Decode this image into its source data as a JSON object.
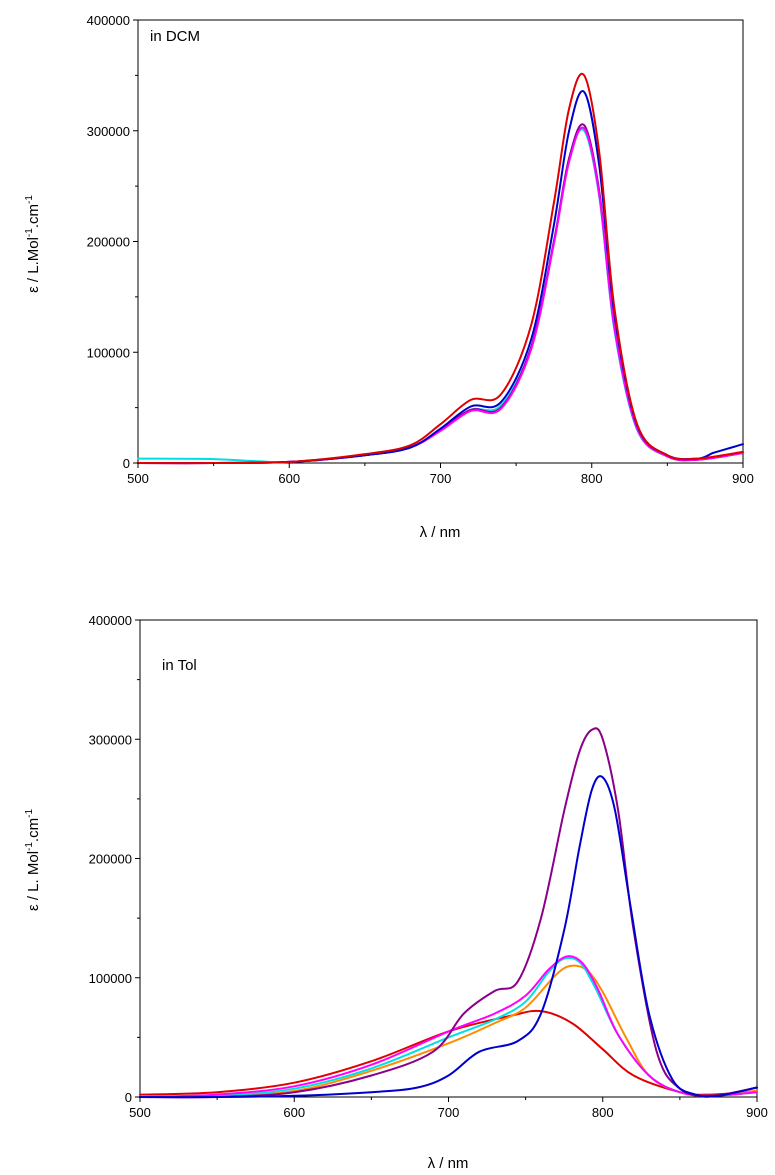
{
  "chart_data": [
    {
      "type": "line",
      "annotation": "in DCM",
      "xlabel": "λ / nm",
      "ylabel": "ε / L.Mol-1.cm-1",
      "ylabel_parts": [
        "ε / L.Mol",
        "-1",
        ".cm",
        "-1"
      ],
      "xlim": [
        500,
        900
      ],
      "ylim": [
        0,
        400000
      ],
      "xticks": [
        500,
        600,
        700,
        800,
        900
      ],
      "yticks": [
        0,
        100000,
        200000,
        300000,
        400000
      ],
      "grid": false,
      "series": [
        {
          "color": "#00e0e0",
          "x": [
            500,
            550,
            580,
            600,
            650,
            680,
            700,
            720,
            740,
            760,
            775,
            785,
            795,
            805,
            815,
            830,
            850,
            870,
            900
          ],
          "y": [
            4000,
            3500,
            1500,
            1000,
            7000,
            14000,
            30000,
            48000,
            52000,
            105000,
            200000,
            275000,
            300000,
            240000,
            120000,
            30000,
            6000,
            3000,
            9000
          ]
        },
        {
          "color": "#8b008b",
          "x": [
            500,
            550,
            600,
            650,
            680,
            700,
            720,
            740,
            760,
            775,
            785,
            795,
            805,
            815,
            830,
            850,
            870,
            900
          ],
          "y": [
            0,
            0,
            1000,
            7000,
            14000,
            30000,
            48000,
            50000,
            105000,
            200000,
            275000,
            305000,
            245000,
            125000,
            32000,
            6000,
            3000,
            9000
          ]
        },
        {
          "color": "#ff00ff",
          "x": [
            500,
            550,
            600,
            650,
            680,
            700,
            720,
            740,
            760,
            775,
            785,
            795,
            805,
            815,
            830,
            850,
            870,
            900
          ],
          "y": [
            0,
            0,
            1000,
            7000,
            14000,
            29000,
            47000,
            49000,
            103000,
            198000,
            272000,
            302000,
            242000,
            122000,
            31000,
            6000,
            3000,
            9000
          ]
        },
        {
          "color": "#0000cc",
          "x": [
            500,
            550,
            600,
            650,
            680,
            700,
            720,
            740,
            760,
            775,
            785,
            795,
            805,
            815,
            830,
            850,
            870,
            880,
            885,
            890,
            895,
            900
          ],
          "y": [
            0,
            0,
            1000,
            7000,
            14000,
            31000,
            51000,
            55000,
            112000,
            215000,
            300000,
            335000,
            268000,
            135000,
            34000,
            7000,
            4000,
            9000,
            11000,
            13000,
            15000,
            17000
          ]
        },
        {
          "color": "#e00000",
          "x": [
            500,
            550,
            600,
            650,
            680,
            700,
            720,
            740,
            760,
            775,
            785,
            795,
            805,
            815,
            830,
            850,
            870,
            900
          ],
          "y": [
            0,
            0,
            1000,
            8000,
            16000,
            35000,
            57000,
            62000,
            125000,
            235000,
            320000,
            350000,
            280000,
            140000,
            35000,
            7000,
            4000,
            10000
          ]
        }
      ]
    },
    {
      "type": "line",
      "annotation": "in Tol",
      "xlabel": "λ / nm",
      "ylabel": "ε / L. Mol-1.cm-1",
      "ylabel_parts": [
        "ε / L. Mol",
        "-1",
        ".cm",
        "-1"
      ],
      "xlim": [
        500,
        900
      ],
      "ylim": [
        0,
        400000
      ],
      "xticks": [
        500,
        600,
        700,
        800,
        900
      ],
      "yticks": [
        0,
        100000,
        200000,
        300000,
        400000
      ],
      "grid": false,
      "series": [
        {
          "color": "#e00000",
          "x": [
            500,
            550,
            600,
            650,
            700,
            740,
            760,
            780,
            800,
            820,
            850,
            870,
            900
          ],
          "y": [
            2000,
            4000,
            12000,
            30000,
            55000,
            68000,
            72000,
            62000,
            40000,
            18000,
            4000,
            2000,
            5000
          ]
        },
        {
          "color": "#ff8c00",
          "x": [
            500,
            550,
            600,
            650,
            700,
            730,
            750,
            770,
            780,
            790,
            800,
            815,
            830,
            850,
            870,
            900
          ],
          "y": [
            0,
            1000,
            5000,
            22000,
            45000,
            62000,
            75000,
            103000,
            110000,
            106000,
            88000,
            50000,
            18000,
            4000,
            1000,
            5000
          ]
        },
        {
          "color": "#00e0e0",
          "x": [
            500,
            550,
            600,
            650,
            700,
            730,
            750,
            765,
            775,
            785,
            795,
            810,
            830,
            850,
            870,
            900
          ],
          "y": [
            0,
            1000,
            7000,
            24000,
            50000,
            65000,
            80000,
            105000,
            116000,
            113000,
            92000,
            52000,
            18000,
            4000,
            1000,
            4000
          ]
        },
        {
          "color": "#ff00ff",
          "x": [
            500,
            550,
            600,
            650,
            700,
            730,
            750,
            765,
            777,
            787,
            797,
            810,
            830,
            850,
            870,
            900
          ],
          "y": [
            0,
            2000,
            9000,
            27000,
            55000,
            70000,
            85000,
            107000,
            118000,
            112000,
            90000,
            52000,
            18000,
            4000,
            1000,
            4000
          ]
        },
        {
          "color": "#8b008b",
          "x": [
            500,
            550,
            600,
            650,
            690,
            710,
            730,
            745,
            760,
            775,
            785,
            793,
            800,
            810,
            820,
            835,
            850,
            870,
            900
          ],
          "y": [
            0,
            0,
            4000,
            18000,
            38000,
            70000,
            89000,
            97000,
            150000,
            240000,
            290000,
            308000,
            300000,
            240000,
            140000,
            38000,
            7000,
            1000,
            8000
          ]
        },
        {
          "color": "#0000cc",
          "x": [
            500,
            550,
            600,
            650,
            680,
            700,
            720,
            745,
            760,
            775,
            785,
            793,
            800,
            808,
            818,
            830,
            845,
            860,
            875,
            900
          ],
          "y": [
            0,
            0,
            1000,
            4000,
            8000,
            18000,
            38000,
            47000,
            70000,
            140000,
            210000,
            258000,
            268000,
            240000,
            160000,
            70000,
            15000,
            2000,
            1000,
            8000
          ]
        }
      ]
    }
  ]
}
